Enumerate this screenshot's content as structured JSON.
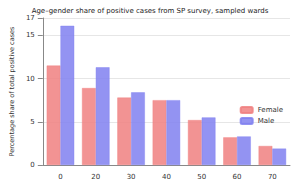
{
  "chart_data": {
    "type": "bar",
    "title": "Age–gender share of positive cases from SP survey, sampled wards",
    "y_label": "Percentage share of total positive cases",
    "categories": [
      "0",
      "20",
      "30",
      "40",
      "50",
      "60",
      "70"
    ],
    "series": [
      {
        "name": "Female",
        "color": "#f08080",
        "values": [
          11.5,
          8.9,
          7.8,
          7.5,
          5.2,
          3.2,
          2.2
        ]
      },
      {
        "name": "Male",
        "color": "#8080f0",
        "values": [
          16.1,
          11.3,
          8.4,
          7.5,
          5.5,
          3.3,
          1.9
        ]
      }
    ],
    "ylim": [
      0,
      17
    ],
    "yticks": [
      0,
      5,
      10,
      15
    ],
    "grid": true,
    "legend": "lower right"
  }
}
